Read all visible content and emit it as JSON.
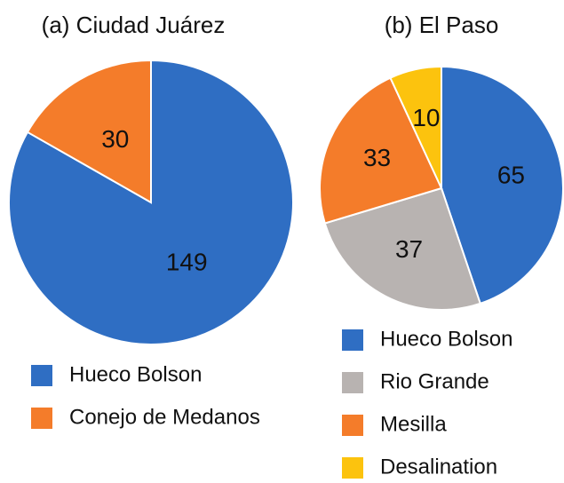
{
  "chart_data": [
    {
      "type": "pie",
      "title": "(a) Ciudad Juárez",
      "categories": [
        "Hueco Bolson",
        "Conejo de Medanos"
      ],
      "values": [
        149,
        30
      ],
      "colors": [
        "#2f6ec3",
        "#f47c2a"
      ]
    },
    {
      "type": "pie",
      "title": "(b) El Paso",
      "categories": [
        "Hueco Bolson",
        "Rio Grande",
        "Mesilla",
        "Desalination"
      ],
      "values": [
        65,
        37,
        33,
        10
      ],
      "colors": [
        "#2f6ec3",
        "#b8b3b1",
        "#f47c2a",
        "#fcc30e"
      ]
    }
  ]
}
